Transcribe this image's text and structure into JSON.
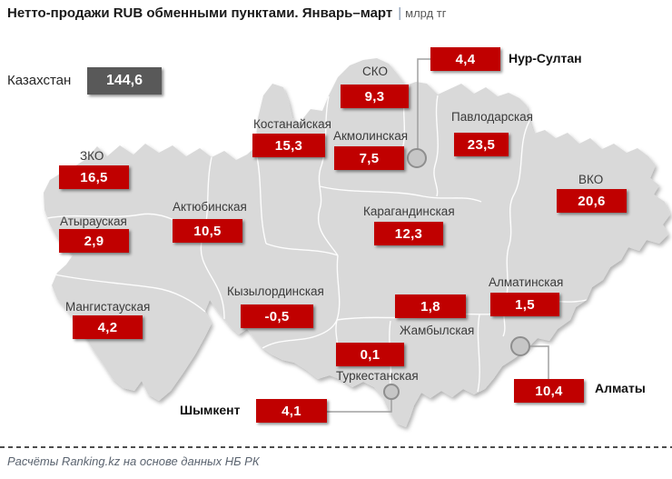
{
  "title": {
    "text": "Нетто-продажи RUB обменными пунктами. Январь–март",
    "separator": "|",
    "unit": "млрд тг"
  },
  "country": {
    "label": "Казахстан",
    "value": "144,6"
  },
  "footer": {
    "source": "Расчёты Ranking.kz на основе данных НБ РК"
  },
  "colors": {
    "value_box": "#c00000",
    "country_box": "#595959",
    "map_fill": "#d9d9d9",
    "region_border": "#ffffff",
    "connector": "#a0a0a0",
    "marker_fill": "#c6c6c6",
    "marker_stroke": "#8e8e8e"
  },
  "chart_data": {
    "type": "map",
    "title": "Нетто-продажи RUB обменными пунктами. Январь–март",
    "unit": "млрд тг",
    "total": {
      "name": "Казахстан",
      "value": 144.6,
      "display": "144,6"
    },
    "source": "Расчёты Ranking.kz на основе данных НБ РК",
    "regions": [
      {
        "name": "Нур-Султан",
        "value": 4.4,
        "display": "4,4",
        "kind": "city"
      },
      {
        "name": "СКО",
        "value": 9.3,
        "display": "9,3",
        "kind": "region"
      },
      {
        "name": "Костанайская",
        "value": 15.3,
        "display": "15,3",
        "kind": "region"
      },
      {
        "name": "Акмолинская",
        "value": 7.5,
        "display": "7,5",
        "kind": "region"
      },
      {
        "name": "Павлодарская",
        "value": 23.5,
        "display": "23,5",
        "kind": "region"
      },
      {
        "name": "ЗКО",
        "value": 16.5,
        "display": "16,5",
        "kind": "region"
      },
      {
        "name": "ВКО",
        "value": 20.6,
        "display": "20,6",
        "kind": "region"
      },
      {
        "name": "Атырауская",
        "value": 2.9,
        "display": "2,9",
        "kind": "region"
      },
      {
        "name": "Актюбинская",
        "value": 10.5,
        "display": "10,5",
        "kind": "region"
      },
      {
        "name": "Карагандинская",
        "value": 12.3,
        "display": "12,3",
        "kind": "region"
      },
      {
        "name": "Алматинская",
        "value": 1.5,
        "display": "1,5",
        "kind": "region"
      },
      {
        "name": "Кызылординская",
        "value": -0.5,
        "display": "-0,5",
        "kind": "region"
      },
      {
        "name": "Мангистауская",
        "value": 4.2,
        "display": "4,2",
        "kind": "region"
      },
      {
        "name": "Жамбылская",
        "value": 1.8,
        "display": "1,8",
        "kind": "region"
      },
      {
        "name": "Туркестанская",
        "value": 0.1,
        "display": "0,1",
        "kind": "region"
      },
      {
        "name": "Шымкент",
        "value": 4.1,
        "display": "4,1",
        "kind": "city"
      },
      {
        "name": "Алматы",
        "value": 10.4,
        "display": "10,4",
        "kind": "city"
      }
    ]
  }
}
